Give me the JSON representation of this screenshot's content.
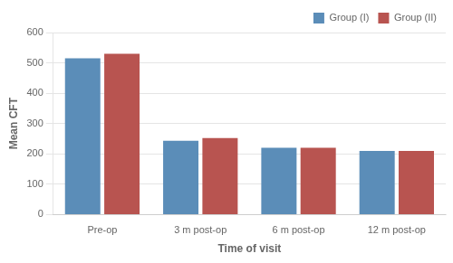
{
  "chart_data": {
    "type": "bar",
    "categories": [
      "Pre-op",
      "3 m post-op",
      "6 m post-op",
      "12 m post-op"
    ],
    "series": [
      {
        "name": "Group (I)",
        "color": "#5B8DB8",
        "values": [
          515,
          243,
          220,
          210
        ]
      },
      {
        "name": "Group (II)",
        "color": "#B85450",
        "values": [
          530,
          252,
          220,
          210
        ]
      }
    ],
    "xlabel": "Time of visit",
    "ylabel": "Mean CFT",
    "ylim": [
      0,
      600
    ],
    "yticks": [
      0,
      100,
      200,
      300,
      400,
      500,
      600
    ],
    "grid": true,
    "legend": "upper right"
  }
}
